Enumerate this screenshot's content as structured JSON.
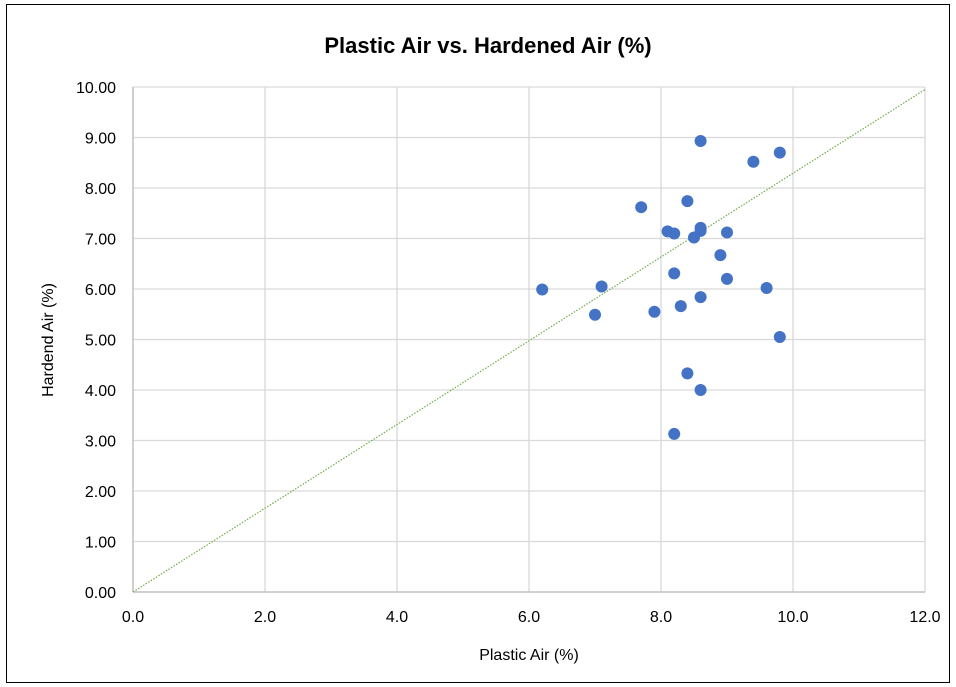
{
  "chart_data": {
    "type": "scatter",
    "title": "Plastic Air vs. Hardened Air (%)",
    "xlabel": "Plastic Air (%)",
    "ylabel": "Hardend Air (%)",
    "xlim": [
      0,
      12
    ],
    "ylim": [
      0,
      10
    ],
    "x_ticks": [
      "0.0",
      "2.0",
      "4.0",
      "6.0",
      "8.0",
      "10.0",
      "12.0"
    ],
    "y_ticks": [
      "0.00",
      "1.00",
      "2.00",
      "3.00",
      "4.00",
      "5.00",
      "6.00",
      "7.00",
      "8.00",
      "9.00",
      "10.00"
    ],
    "grid": true,
    "series": [
      {
        "color": "#4472C4",
        "points": [
          {
            "x": 6.2,
            "y": 5.99
          },
          {
            "x": 7.0,
            "y": 5.49
          },
          {
            "x": 7.1,
            "y": 6.05
          },
          {
            "x": 7.7,
            "y": 7.62
          },
          {
            "x": 7.9,
            "y": 5.55
          },
          {
            "x": 8.1,
            "y": 7.14
          },
          {
            "x": 8.2,
            "y": 7.1
          },
          {
            "x": 8.2,
            "y": 6.31
          },
          {
            "x": 8.2,
            "y": 3.13
          },
          {
            "x": 8.3,
            "y": 5.66
          },
          {
            "x": 8.4,
            "y": 7.74
          },
          {
            "x": 8.4,
            "y": 4.33
          },
          {
            "x": 8.5,
            "y": 7.02
          },
          {
            "x": 8.6,
            "y": 8.93
          },
          {
            "x": 8.6,
            "y": 7.21
          },
          {
            "x": 8.6,
            "y": 7.15
          },
          {
            "x": 8.6,
            "y": 5.84
          },
          {
            "x": 8.6,
            "y": 4.0
          },
          {
            "x": 8.9,
            "y": 6.67
          },
          {
            "x": 9.0,
            "y": 7.12
          },
          {
            "x": 9.0,
            "y": 6.2
          },
          {
            "x": 9.4,
            "y": 8.52
          },
          {
            "x": 9.6,
            "y": 6.02
          },
          {
            "x": 9.8,
            "y": 8.7
          },
          {
            "x": 9.8,
            "y": 5.05
          }
        ]
      }
    ],
    "reference_line": {
      "color": "#70AD47",
      "style": "dotted",
      "x": [
        0,
        12
      ],
      "y": [
        0,
        9.95
      ]
    }
  }
}
